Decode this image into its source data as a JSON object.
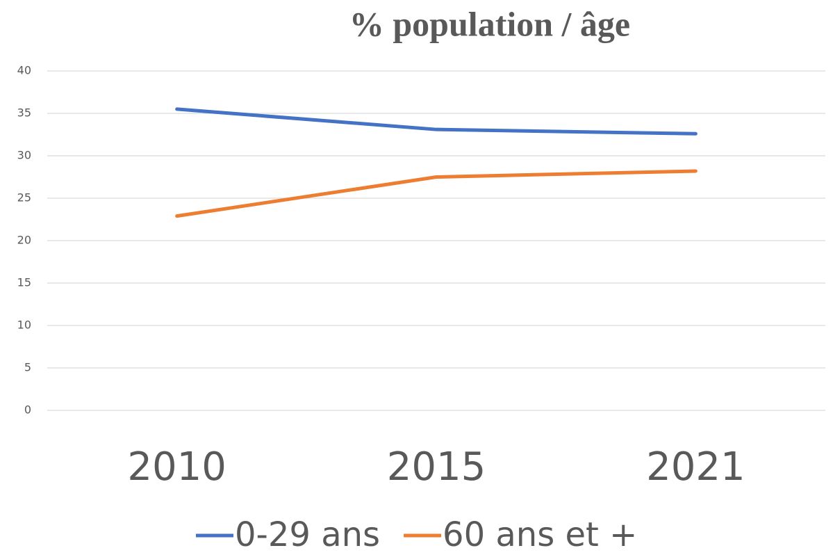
{
  "chart_data": {
    "type": "line",
    "title": "% population / âge",
    "categories": [
      "2010",
      "2015",
      "2021"
    ],
    "series": [
      {
        "name": "0-29 ans",
        "color": "#4472c4",
        "values": [
          35.5,
          33.1,
          32.6
        ]
      },
      {
        "name": "60 ans et +",
        "color": "#ed7d31",
        "values": [
          22.9,
          27.5,
          28.2
        ]
      }
    ],
    "ylim": [
      0,
      40
    ],
    "yticks": [
      0,
      5,
      10,
      15,
      20,
      25,
      30,
      35,
      40
    ],
    "grid": true,
    "legend": "bottom"
  }
}
